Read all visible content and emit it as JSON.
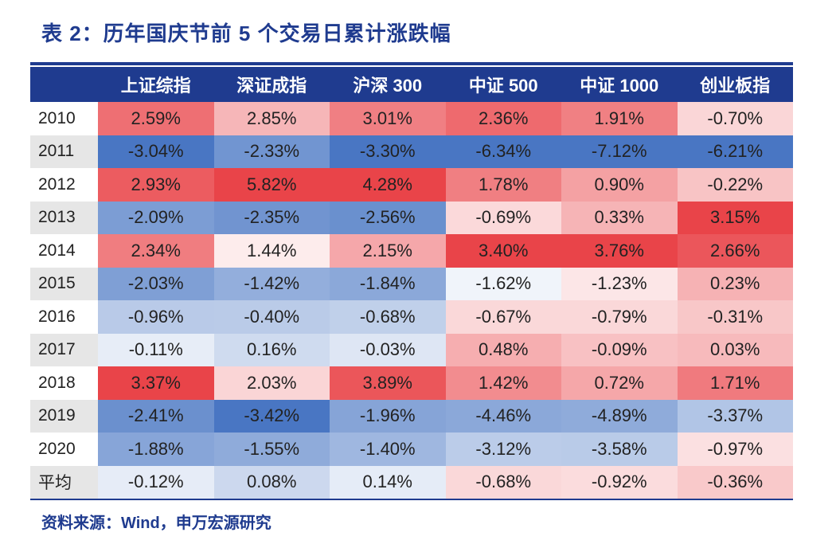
{
  "title": "表 2：历年国庆节前 5 个交易日累计涨跌幅",
  "source": "资料来源：Wind，申万宏源研究",
  "colors": {
    "header_bg": "#1f3b8f",
    "positive": "#e83a3f",
    "negative": "#3f6fc0",
    "neutral": "#ffffff"
  },
  "chart_data": {
    "type": "heatmap",
    "title": "表 2：历年国庆节前 5 个交易日累计涨跌幅",
    "columns": [
      "上证综指",
      "深证成指",
      "沪深 300",
      "中证 500",
      "中证 1000",
      "创业板指"
    ],
    "rows": [
      {
        "label": "2010",
        "values": [
          2.59,
          2.85,
          3.01,
          2.36,
          1.91,
          -0.7
        ],
        "display": [
          "2.59%",
          "2.85%",
          "3.01%",
          "2.36%",
          "1.91%",
          "-0.70%"
        ]
      },
      {
        "label": "2011",
        "values": [
          -3.04,
          -2.33,
          -3.3,
          -6.34,
          -7.12,
          -6.21
        ],
        "display": [
          "-3.04%",
          "-2.33%",
          "-3.30%",
          "-6.34%",
          "-7.12%",
          "-6.21%"
        ]
      },
      {
        "label": "2012",
        "values": [
          2.93,
          5.82,
          4.28,
          1.78,
          0.9,
          -0.22
        ],
        "display": [
          "2.93%",
          "5.82%",
          "4.28%",
          "1.78%",
          "0.90%",
          "-0.22%"
        ]
      },
      {
        "label": "2013",
        "values": [
          -2.09,
          -2.35,
          -2.56,
          -0.69,
          0.33,
          3.15
        ],
        "display": [
          "-2.09%",
          "-2.35%",
          "-2.56%",
          "-0.69%",
          "0.33%",
          "3.15%"
        ]
      },
      {
        "label": "2014",
        "values": [
          2.34,
          1.44,
          2.15,
          3.4,
          3.76,
          2.66
        ],
        "display": [
          "2.34%",
          "1.44%",
          "2.15%",
          "3.40%",
          "3.76%",
          "2.66%"
        ]
      },
      {
        "label": "2015",
        "values": [
          -2.03,
          -1.42,
          -1.84,
          -1.62,
          -1.23,
          0.23
        ],
        "display": [
          "-2.03%",
          "-1.42%",
          "-1.84%",
          "-1.62%",
          "-1.23%",
          "0.23%"
        ]
      },
      {
        "label": "2016",
        "values": [
          -0.96,
          -0.4,
          -0.68,
          -0.67,
          -0.79,
          -0.31
        ],
        "display": [
          "-0.96%",
          "-0.40%",
          "-0.68%",
          "-0.67%",
          "-0.79%",
          "-0.31%"
        ]
      },
      {
        "label": "2017",
        "values": [
          -0.11,
          0.16,
          -0.03,
          0.48,
          -0.09,
          0.03
        ],
        "display": [
          "-0.11%",
          "0.16%",
          "-0.03%",
          "0.48%",
          "-0.09%",
          "0.03%"
        ]
      },
      {
        "label": "2018",
        "values": [
          3.37,
          2.03,
          3.89,
          1.42,
          0.72,
          1.71
        ],
        "display": [
          "3.37%",
          "2.03%",
          "3.89%",
          "1.42%",
          "0.72%",
          "1.71%"
        ]
      },
      {
        "label": "2019",
        "values": [
          -2.41,
          -3.42,
          -1.96,
          -4.46,
          -4.89,
          -3.37
        ],
        "display": [
          "-2.41%",
          "-3.42%",
          "-1.96%",
          "-4.46%",
          "-4.89%",
          "-3.37%"
        ]
      },
      {
        "label": "2020",
        "values": [
          -1.88,
          -1.55,
          -1.4,
          -3.12,
          -3.58,
          -0.97
        ],
        "display": [
          "-1.88%",
          "-1.55%",
          "-1.40%",
          "-3.12%",
          "-3.58%",
          "-0.97%"
        ]
      },
      {
        "label": "平均",
        "values": [
          -0.12,
          0.08,
          0.14,
          -0.68,
          -0.92,
          -0.36
        ],
        "display": [
          "-0.12%",
          "0.08%",
          "0.14%",
          "-0.68%",
          "-0.92%",
          "-0.36%"
        ]
      }
    ],
    "color_scale": "per-column, red = higher, blue = lower"
  }
}
